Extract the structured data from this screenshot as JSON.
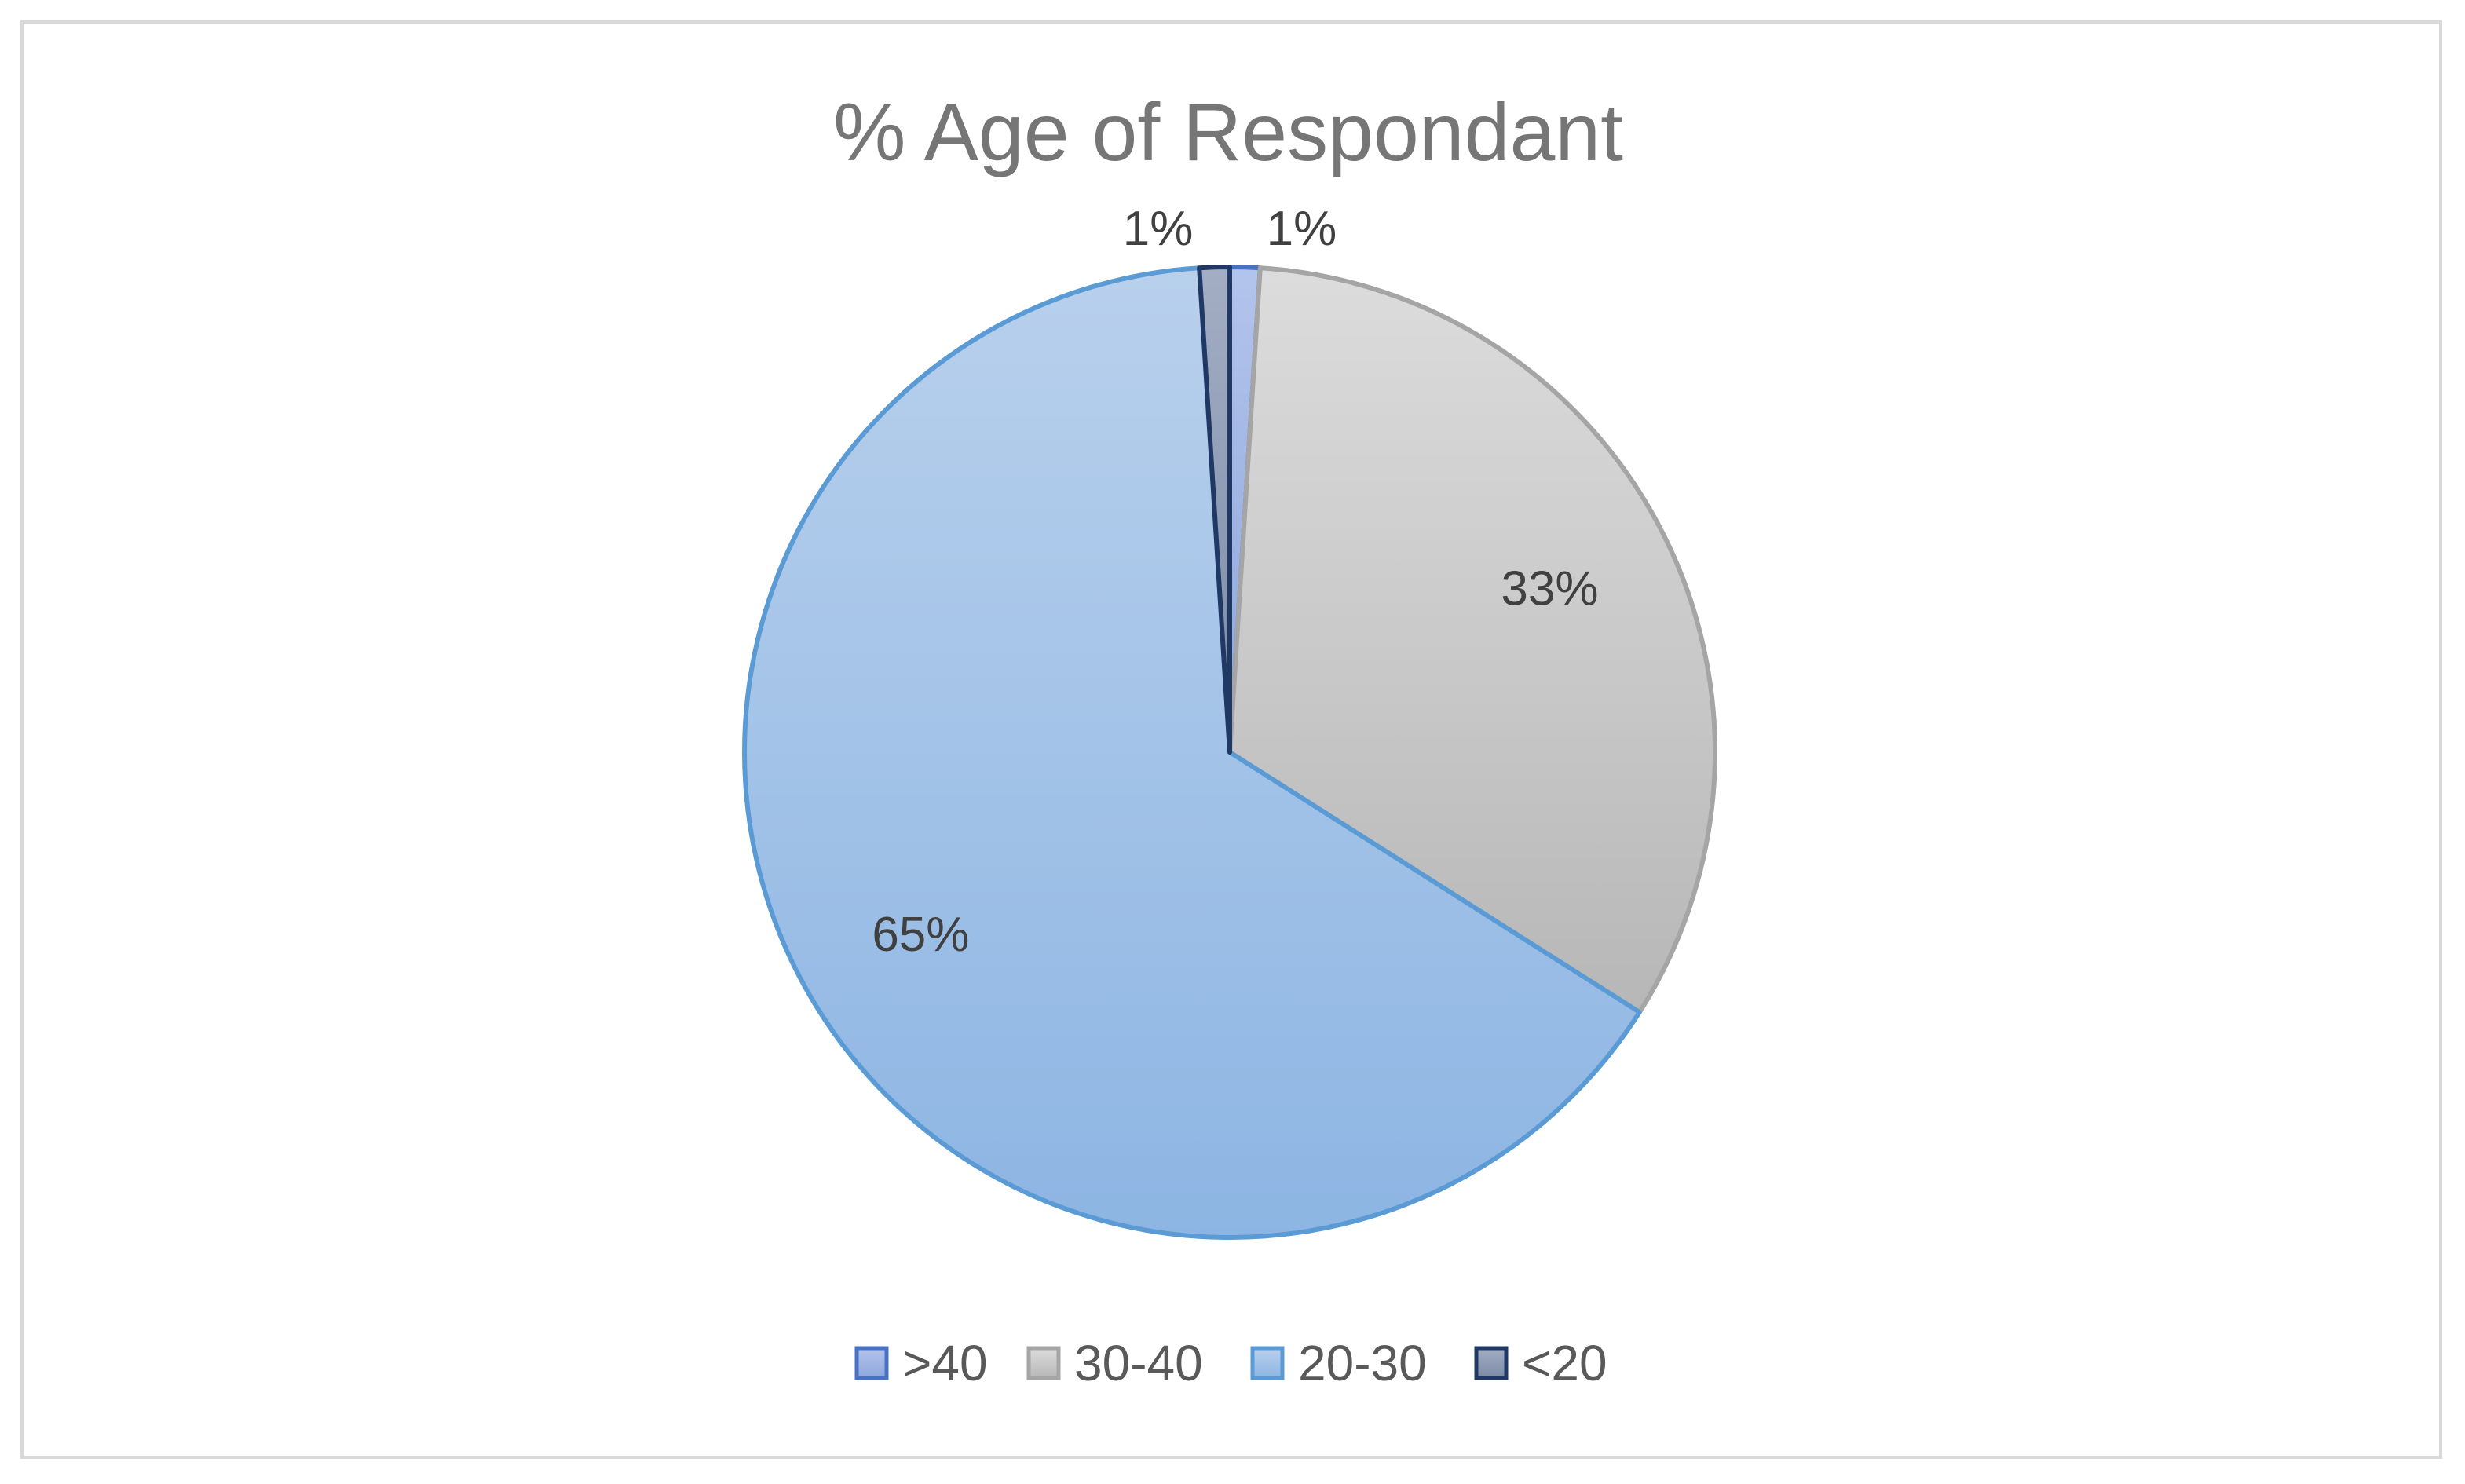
{
  "chart_data": {
    "type": "pie",
    "title": "% Age of Respondant",
    "categories": [
      ">40",
      "30-40",
      "20-30",
      "<20"
    ],
    "values": [
      1,
      33,
      65,
      1
    ],
    "data_labels": [
      "1%",
      "33%",
      "65%",
      "1%"
    ],
    "colors": {
      "fills": [
        "#9fb4e3",
        "#c9c9c9",
        "#a9c5e8",
        "#8e9cb4"
      ],
      "strokes": [
        "#4a72c4",
        "#a5a5a5",
        "#5b9bd5",
        "#1f3864"
      ]
    },
    "legend_position": "bottom",
    "start_angle": "12 o'clock, clockwise"
  }
}
